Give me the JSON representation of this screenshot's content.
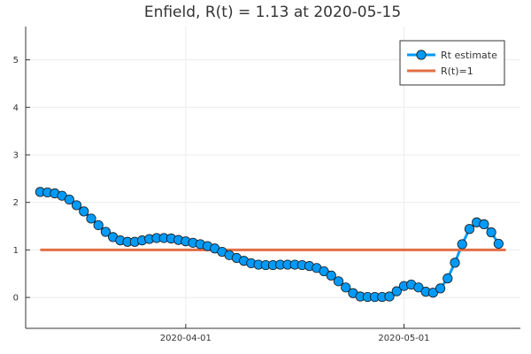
{
  "chart_data": {
    "type": "line",
    "title": "Enfield, R(t) = 1.13 at 2020-05-15",
    "xlabel": "",
    "ylabel": "",
    "x_start": "2020-03-12",
    "x_end": "2020-05-15",
    "xlim": [
      "2020-03-10",
      "2020-05-17"
    ],
    "ylim": [
      -0.65,
      5.7
    ],
    "yticks": [
      0,
      1,
      2,
      3,
      4,
      5
    ],
    "xticks": [
      "2020-04-01",
      "2020-05-01"
    ],
    "grid": true,
    "legend": "top-right",
    "series": [
      {
        "name": "Rt estimate",
        "color": "#009af9",
        "marker": "circle",
        "values": [
          2.22,
          2.21,
          2.19,
          2.14,
          2.06,
          1.94,
          1.81,
          1.66,
          1.52,
          1.38,
          1.27,
          1.2,
          1.17,
          1.17,
          1.2,
          1.23,
          1.25,
          1.25,
          1.24,
          1.21,
          1.18,
          1.15,
          1.12,
          1.08,
          1.03,
          0.96,
          0.89,
          0.83,
          0.77,
          0.72,
          0.69,
          0.68,
          0.68,
          0.69,
          0.69,
          0.69,
          0.68,
          0.66,
          0.62,
          0.55,
          0.46,
          0.34,
          0.21,
          0.09,
          0.02,
          0.01,
          0.01,
          0.01,
          0.02,
          0.13,
          0.24,
          0.27,
          0.21,
          0.12,
          0.1,
          0.19,
          0.4,
          0.73,
          1.12,
          1.44,
          1.58,
          1.54,
          1.37,
          1.13
        ]
      },
      {
        "name": "R(t)=1",
        "color": "#e26f46",
        "values": [
          1,
          1
        ]
      }
    ]
  }
}
